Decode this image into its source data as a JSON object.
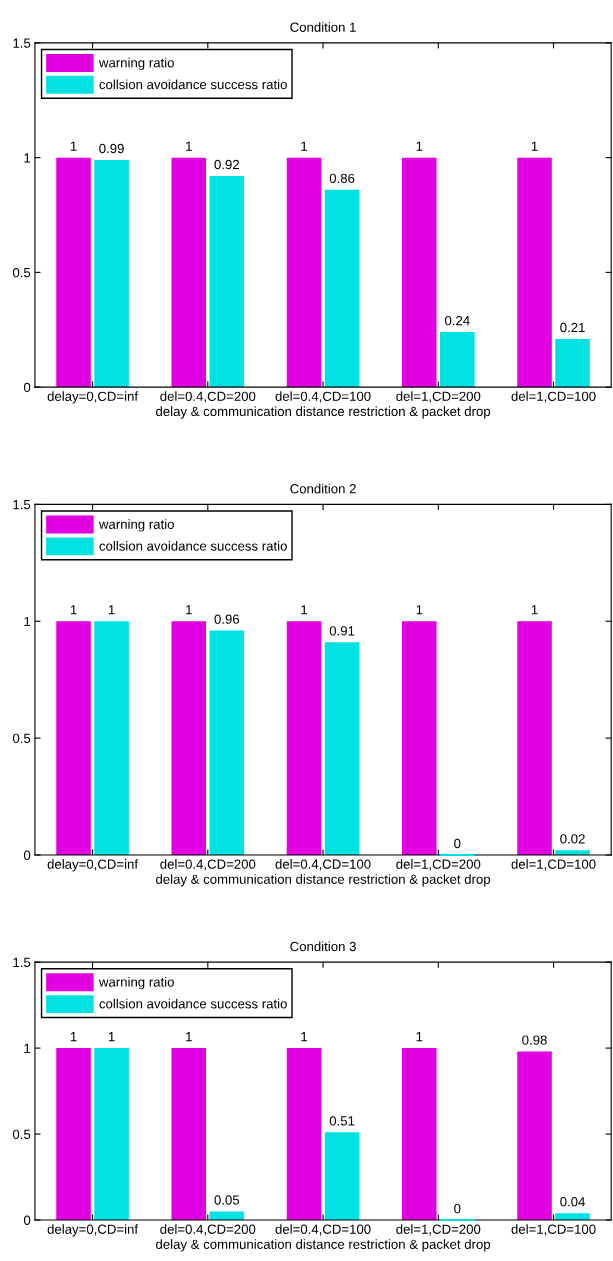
{
  "chart_data": [
    {
      "type": "bar",
      "title": "Condition 1",
      "xlabel": "delay & communication distance restriction & packet drop",
      "categories": [
        "delay=0,CD=inf",
        "del=0.4,CD=200",
        "del=0.4,CD=100",
        "del=1,CD=200",
        "del=1,CD=100"
      ],
      "series": [
        {
          "name": "warning ratio",
          "color": "#e100e1",
          "values": [
            1,
            1,
            1,
            1,
            1
          ]
        },
        {
          "name": "collsion avoidance success ratio",
          "color": "#00e1e1",
          "values": [
            0.99,
            0.92,
            0.86,
            0.24,
            0.21
          ]
        }
      ],
      "ylim": [
        0,
        1.5
      ],
      "yticks": [
        0,
        0.5,
        1,
        1.5
      ],
      "data_labels": true,
      "legend": "top left"
    },
    {
      "type": "bar",
      "title": "Condition 2",
      "xlabel": "delay & communication distance restriction & packet drop",
      "categories": [
        "delay=0,CD=inf",
        "del=0.4,CD=200",
        "del=0.4,CD=100",
        "del=1,CD=200",
        "del=1,CD=100"
      ],
      "series": [
        {
          "name": "warning ratio",
          "color": "#e100e1",
          "values": [
            1,
            1,
            1,
            1,
            1
          ]
        },
        {
          "name": "collsion avoidance success ratio",
          "color": "#00e1e1",
          "values": [
            1,
            0.96,
            0.91,
            0,
            0.02
          ]
        }
      ],
      "ylim": [
        0,
        1.5
      ],
      "yticks": [
        0,
        0.5,
        1,
        1.5
      ],
      "data_labels": true,
      "legend": "top left"
    },
    {
      "type": "bar",
      "title": "Condition 3",
      "xlabel": "delay & communication distance restriction & packet drop",
      "categories": [
        "delay=0,CD=inf",
        "del=0.4,CD=200",
        "del=0.4,CD=100",
        "del=1,CD=200",
        "del=1,CD=100"
      ],
      "series": [
        {
          "name": "warning ratio",
          "color": "#e100e1",
          "values": [
            1,
            1,
            1,
            1,
            0.98
          ]
        },
        {
          "name": "collsion avoidance success ratio",
          "color": "#00e1e1",
          "values": [
            1,
            0.05,
            0.51,
            0,
            0.04
          ]
        }
      ],
      "ylim": [
        0,
        1.5
      ],
      "yticks": [
        0,
        0.5,
        1,
        1.5
      ],
      "data_labels": true,
      "legend": "top left"
    }
  ]
}
